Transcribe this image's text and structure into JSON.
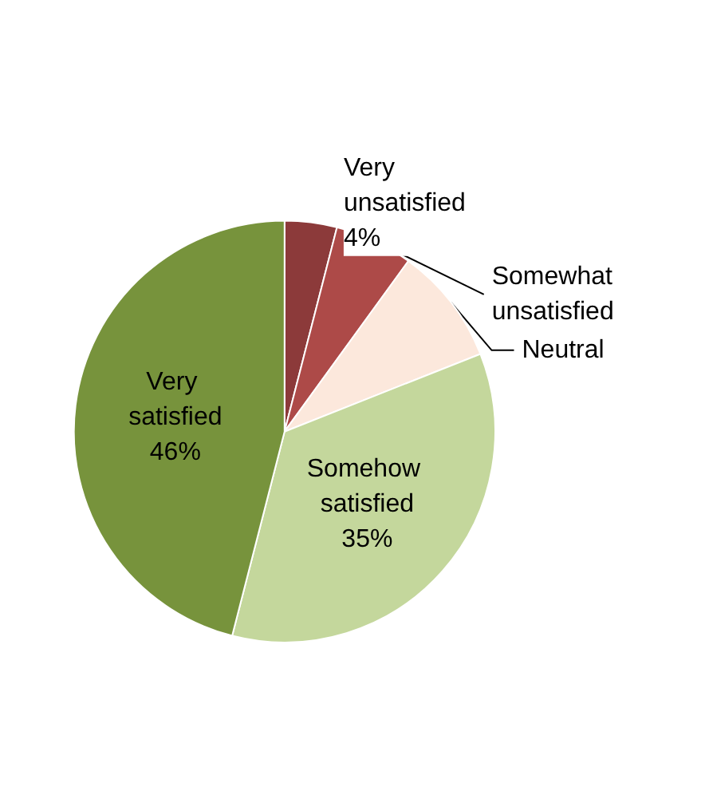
{
  "chart_data": {
    "type": "pie",
    "categories": [
      "Very unsatisfied",
      "Somewhat unsatisfied",
      "Neutral",
      "Somehow satisfied",
      "Very satisfied"
    ],
    "values": [
      4,
      6,
      9,
      35,
      46
    ],
    "colors": [
      "#8c3a3a",
      "#ad4a48",
      "#fce8dc",
      "#c4d79c",
      "#77933c"
    ],
    "value_labels": [
      "4%",
      null,
      null,
      "35%",
      "46%"
    ],
    "legend": false
  }
}
